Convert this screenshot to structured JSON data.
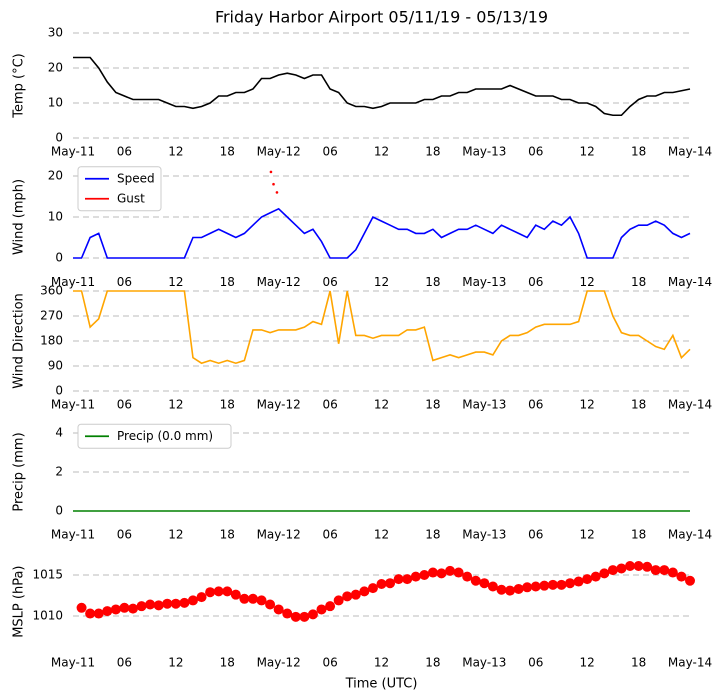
{
  "chart_data": [
    {
      "type": "line",
      "title": "Friday Harbor Airport 05/11/19 - 05/13/19",
      "ylabel": "Temp (°C)",
      "x": [
        0,
        1,
        2,
        3,
        4,
        5,
        6,
        7,
        8,
        9,
        10,
        11,
        12,
        13,
        14,
        15,
        16,
        17,
        18,
        19,
        20,
        21,
        22,
        23,
        24,
        25,
        26,
        27,
        28,
        29,
        30,
        31,
        32,
        33,
        34,
        35,
        36,
        37,
        38,
        39,
        40,
        41,
        42,
        43,
        44,
        45,
        46,
        47,
        48,
        49,
        50,
        51,
        52,
        53,
        54,
        55,
        56,
        57,
        58,
        59,
        60,
        61,
        62,
        63,
        64,
        65,
        66,
        67,
        68,
        69,
        70,
        71,
        72
      ],
      "series": [
        {
          "name": "Temp",
          "color": "#000000",
          "values": [
            23,
            23,
            23,
            20,
            16,
            13,
            12,
            11,
            11,
            11,
            11,
            10,
            9,
            9,
            8.5,
            9,
            10,
            12,
            12,
            13,
            13,
            14,
            17,
            17,
            18,
            18.5,
            18,
            17,
            18,
            18,
            14,
            13,
            10,
            9,
            9,
            8.5,
            9,
            10,
            10,
            10,
            10,
            11,
            11,
            12,
            12,
            13,
            13,
            14,
            14,
            14,
            14,
            15,
            14,
            13,
            12,
            12,
            12,
            11,
            11,
            10,
            10,
            9,
            7,
            6.5,
            6.5,
            9,
            11,
            12,
            12,
            13,
            13,
            13.5,
            14
          ]
        }
      ],
      "xlim": [
        0,
        72
      ],
      "xticks": [
        {
          "value": 0,
          "label": "May-11"
        },
        {
          "value": 6,
          "label": "06"
        },
        {
          "value": 12,
          "label": "12"
        },
        {
          "value": 18,
          "label": "18"
        },
        {
          "value": 24,
          "label": "May-12"
        },
        {
          "value": 30,
          "label": "06"
        },
        {
          "value": 36,
          "label": "12"
        },
        {
          "value": 42,
          "label": "18"
        },
        {
          "value": 48,
          "label": "May-13"
        },
        {
          "value": 54,
          "label": "06"
        },
        {
          "value": 60,
          "label": "12"
        },
        {
          "value": 66,
          "label": "18"
        },
        {
          "value": 72,
          "label": "May-14"
        }
      ],
      "ylim": [
        0,
        30
      ],
      "yticks": [
        0,
        10,
        20,
        30
      ],
      "grid": true
    },
    {
      "type": "line",
      "ylabel": "Wind (mph)",
      "x": [
        0,
        1,
        2,
        3,
        4,
        5,
        6,
        7,
        8,
        9,
        10,
        11,
        12,
        13,
        14,
        15,
        16,
        17,
        18,
        19,
        20,
        21,
        22,
        23,
        24,
        25,
        26,
        27,
        28,
        29,
        30,
        31,
        32,
        33,
        34,
        35,
        36,
        37,
        38,
        39,
        40,
        41,
        42,
        43,
        44,
        45,
        46,
        47,
        48,
        49,
        50,
        51,
        52,
        53,
        54,
        55,
        56,
        57,
        58,
        59,
        60,
        61,
        62,
        63,
        64,
        65,
        66,
        67,
        68,
        69,
        70,
        71,
        72
      ],
      "series": [
        {
          "name": "Speed",
          "color": "#0000ff",
          "values": [
            0,
            0,
            5,
            6,
            0,
            0,
            0,
            0,
            0,
            0,
            0,
            0,
            0,
            0,
            5,
            5,
            6,
            7,
            6,
            5,
            6,
            8,
            10,
            11,
            12,
            10,
            8,
            6,
            7,
            4,
            0,
            0,
            0,
            2,
            6,
            10,
            9,
            8,
            7,
            7,
            6,
            6,
            7,
            5,
            6,
            7,
            7,
            8,
            7,
            6,
            8,
            7,
            6,
            5,
            8,
            7,
            9,
            8,
            10,
            6,
            0,
            0,
            0,
            0,
            5,
            7,
            8,
            8,
            9,
            8,
            6,
            5,
            6
          ]
        },
        {
          "name": "Gust",
          "color": "#ff0000",
          "style": "dots",
          "x": [
            23.1,
            23.4,
            23.8
          ],
          "values": [
            21,
            18,
            16
          ]
        }
      ],
      "xlim": [
        0,
        72
      ],
      "xticks": [
        {
          "value": 0,
          "label": "May-11"
        },
        {
          "value": 6,
          "label": "06"
        },
        {
          "value": 12,
          "label": "12"
        },
        {
          "value": 18,
          "label": "18"
        },
        {
          "value": 24,
          "label": "May-12"
        },
        {
          "value": 30,
          "label": "06"
        },
        {
          "value": 36,
          "label": "12"
        },
        {
          "value": 42,
          "label": "18"
        },
        {
          "value": 48,
          "label": "May-13"
        },
        {
          "value": 54,
          "label": "06"
        },
        {
          "value": 60,
          "label": "12"
        },
        {
          "value": 66,
          "label": "18"
        },
        {
          "value": 72,
          "label": "May-14"
        }
      ],
      "ylim": [
        -2.5,
        22.5
      ],
      "yticks": [
        0,
        10,
        20
      ],
      "grid": true,
      "legend": "upper left"
    },
    {
      "type": "line",
      "ylabel": "Wind Direction",
      "x": [
        0,
        1,
        2,
        3,
        4,
        5,
        6,
        7,
        8,
        9,
        10,
        11,
        12,
        13,
        14,
        15,
        16,
        17,
        18,
        19,
        20,
        21,
        22,
        23,
        24,
        25,
        26,
        27,
        28,
        29,
        30,
        31,
        32,
        33,
        34,
        35,
        36,
        37,
        38,
        39,
        40,
        41,
        42,
        43,
        44,
        45,
        46,
        47,
        48,
        49,
        50,
        51,
        52,
        53,
        54,
        55,
        56,
        57,
        58,
        59,
        60,
        61,
        62,
        63,
        64,
        65,
        66,
        67,
        68,
        69,
        70,
        71,
        72
      ],
      "series": [
        {
          "name": "Direction",
          "color": "#ffa500",
          "values": [
            360,
            360,
            230,
            260,
            360,
            360,
            360,
            360,
            360,
            360,
            360,
            360,
            360,
            360,
            120,
            100,
            110,
            100,
            110,
            100,
            110,
            220,
            220,
            210,
            220,
            220,
            220,
            230,
            250,
            240,
            360,
            170,
            360,
            200,
            200,
            190,
            200,
            200,
            200,
            220,
            220,
            230,
            110,
            120,
            130,
            120,
            130,
            140,
            140,
            130,
            180,
            200,
            200,
            210,
            230,
            240,
            240,
            240,
            240,
            250,
            360,
            360,
            360,
            270,
            210,
            200,
            200,
            180,
            160,
            150,
            200,
            120,
            150
          ]
        }
      ],
      "xlim": [
        0,
        72
      ],
      "xticks": [
        {
          "value": 0,
          "label": "May-11"
        },
        {
          "value": 6,
          "label": "06"
        },
        {
          "value": 12,
          "label": "12"
        },
        {
          "value": 18,
          "label": "18"
        },
        {
          "value": 24,
          "label": "May-12"
        },
        {
          "value": 30,
          "label": "06"
        },
        {
          "value": 36,
          "label": "12"
        },
        {
          "value": 42,
          "label": "18"
        },
        {
          "value": 48,
          "label": "May-13"
        },
        {
          "value": 54,
          "label": "06"
        },
        {
          "value": 60,
          "label": "12"
        },
        {
          "value": 66,
          "label": "18"
        },
        {
          "value": 72,
          "label": "May-14"
        }
      ],
      "ylim": [
        0,
        360
      ],
      "yticks": [
        0,
        90,
        180,
        270,
        360
      ],
      "grid": true
    },
    {
      "type": "line",
      "ylabel": "Precip (mm)",
      "x": [
        0,
        72
      ],
      "series": [
        {
          "name": "Precip (0.0 mm)",
          "color": "#008000",
          "values": [
            0,
            0
          ]
        }
      ],
      "xlim": [
        0,
        72
      ],
      "xticks": [
        {
          "value": 0,
          "label": "May-11"
        },
        {
          "value": 6,
          "label": "06"
        },
        {
          "value": 12,
          "label": "12"
        },
        {
          "value": 18,
          "label": "18"
        },
        {
          "value": 24,
          "label": "May-12"
        },
        {
          "value": 30,
          "label": "06"
        },
        {
          "value": 36,
          "label": "12"
        },
        {
          "value": 42,
          "label": "18"
        },
        {
          "value": 48,
          "label": "May-13"
        },
        {
          "value": 54,
          "label": "06"
        },
        {
          "value": 60,
          "label": "12"
        },
        {
          "value": 66,
          "label": "18"
        },
        {
          "value": 72,
          "label": "May-14"
        }
      ],
      "ylim": [
        -0.5,
        4.5
      ],
      "yticks": [
        0,
        2,
        4
      ],
      "grid": true,
      "legend": "upper left"
    },
    {
      "type": "scatter",
      "ylabel": "MSLP (hPa)",
      "xlabel": "Time (UTC)",
      "x": [
        1,
        2,
        3,
        4,
        5,
        6,
        7,
        8,
        9,
        10,
        11,
        12,
        13,
        14,
        15,
        16,
        17,
        18,
        19,
        20,
        21,
        22,
        23,
        24,
        25,
        26,
        27,
        28,
        29,
        30,
        31,
        32,
        33,
        34,
        35,
        36,
        37,
        38,
        39,
        40,
        41,
        42,
        43,
        44,
        45,
        46,
        47,
        48,
        49,
        50,
        51,
        52,
        53,
        54,
        55,
        56,
        57,
        58,
        59,
        60,
        61,
        62,
        63,
        64,
        65,
        66,
        67,
        68,
        69,
        70,
        71,
        72
      ],
      "series": [
        {
          "name": "MSLP",
          "color": "#ff0000",
          "values": [
            1011,
            1010.3,
            1010.3,
            1010.6,
            1010.8,
            1011,
            1010.9,
            1011.2,
            1011.4,
            1011.3,
            1011.5,
            1011.5,
            1011.6,
            1011.9,
            1012.3,
            1012.9,
            1013,
            1013,
            1012.6,
            1012.1,
            1012.1,
            1011.9,
            1011.4,
            1010.8,
            1010.3,
            1009.9,
            1009.9,
            1010.2,
            1010.8,
            1011.2,
            1011.9,
            1012.4,
            1012.6,
            1013,
            1013.4,
            1013.9,
            1014,
            1014.5,
            1014.5,
            1014.8,
            1015,
            1015.3,
            1015.2,
            1015.5,
            1015.3,
            1014.8,
            1014.3,
            1014,
            1013.6,
            1013.2,
            1013.1,
            1013.3,
            1013.5,
            1013.6,
            1013.7,
            1013.8,
            1013.8,
            1014,
            1014.2,
            1014.5,
            1014.8,
            1015.2,
            1015.6,
            1015.8,
            1016.1,
            1016.1,
            1016,
            1015.6,
            1015.6,
            1015.3,
            1014.8,
            1014.3
          ]
        }
      ],
      "xlim": [
        0,
        72
      ],
      "xticks": [
        {
          "value": 0,
          "label": "May-11"
        },
        {
          "value": 6,
          "label": "06"
        },
        {
          "value": 12,
          "label": "12"
        },
        {
          "value": 18,
          "label": "18"
        },
        {
          "value": 24,
          "label": "May-12"
        },
        {
          "value": 30,
          "label": "06"
        },
        {
          "value": 36,
          "label": "12"
        },
        {
          "value": 42,
          "label": "18"
        },
        {
          "value": 48,
          "label": "May-13"
        },
        {
          "value": 54,
          "label": "06"
        },
        {
          "value": 60,
          "label": "12"
        },
        {
          "value": 66,
          "label": "18"
        },
        {
          "value": 72,
          "label": "May-14"
        }
      ],
      "ylim": [
        1006,
        1017.5
      ],
      "yticks": [
        1010,
        1015
      ],
      "grid": true
    }
  ]
}
